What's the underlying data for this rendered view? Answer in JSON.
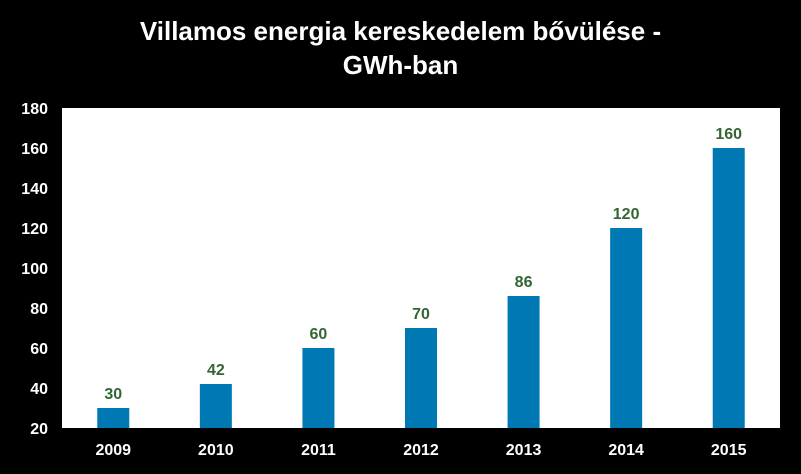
{
  "chart_data": {
    "type": "bar",
    "title_lines": [
      "Villamos energia kereskedelem bővülése -",
      "GWh-ban"
    ],
    "xlabel": "",
    "ylabel": "",
    "categories": [
      "2009",
      "2010",
      "2011",
      "2012",
      "2013",
      "2014",
      "2015"
    ],
    "values": [
      30,
      42,
      60,
      70,
      86,
      120,
      160
    ],
    "data_labels": [
      "30",
      "42",
      "60",
      "70",
      "86",
      "120",
      "160"
    ],
    "ylim": [
      20,
      180
    ],
    "yticks": [
      20,
      40,
      60,
      80,
      100,
      120,
      140,
      160,
      180
    ],
    "ytick_labels": [
      "20",
      "40",
      "60",
      "80",
      "100",
      "120",
      "140",
      "160",
      "180"
    ],
    "grid": false,
    "legend": "none",
    "colors": {
      "background": "#000000",
      "plot_area": "#ffffff",
      "bar": "#0078b4",
      "data_label": "#336633",
      "text": "#ffffff"
    }
  }
}
